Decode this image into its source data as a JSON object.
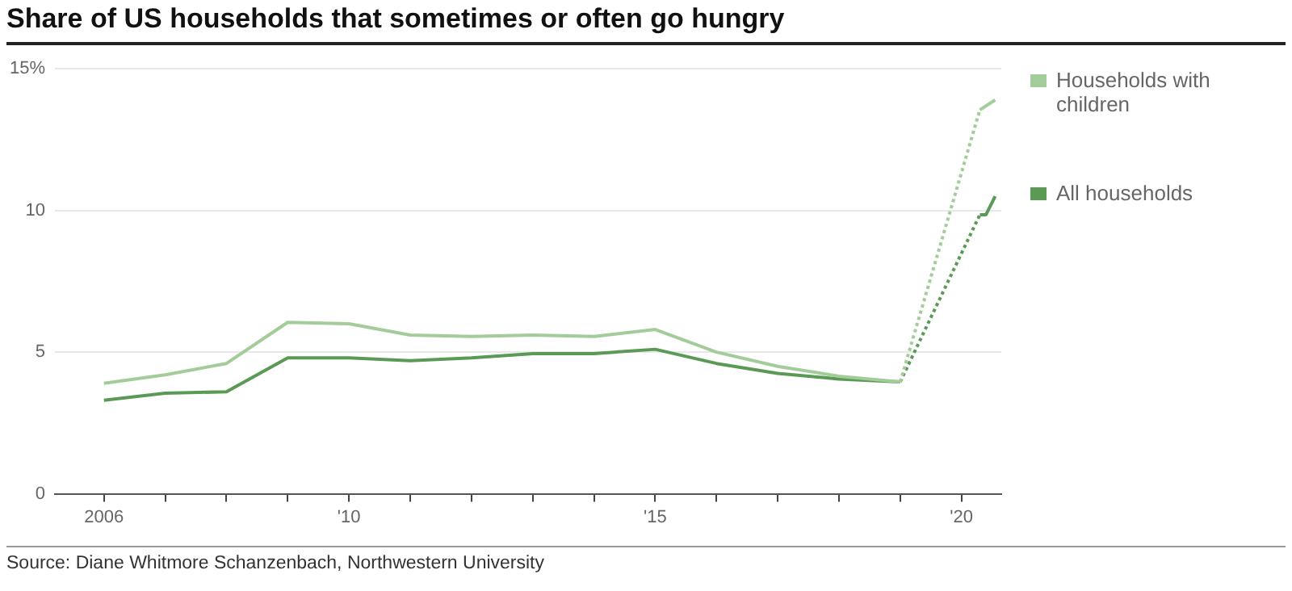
{
  "chart_data": {
    "type": "line",
    "title": "Share of US households that sometimes or often go hungry",
    "annotations": [
      "Source: Diane Whitmore Schanzenbach, Northwestern University"
    ],
    "series": [
      {
        "name": "Households with children",
        "color": "#a3cc9a",
        "line_style": "solid",
        "x": [
          2006,
          2007,
          2008,
          2009,
          2010,
          2011,
          2012,
          2013,
          2014,
          2015,
          2016,
          2017,
          2018,
          2019
        ],
        "values": [
          3.9,
          4.2,
          4.6,
          6.05,
          6.0,
          5.6,
          5.55,
          5.6,
          5.55,
          5.8,
          5.0,
          4.5,
          4.15,
          3.95
        ]
      },
      {
        "color": "#a3cc9a",
        "line_style": "dotted",
        "x": [
          2019,
          2020.3
        ],
        "values": [
          3.95,
          13.55
        ]
      },
      {
        "color": "#a3cc9a",
        "line_style": "solid",
        "x": [
          2020.3,
          2020.55
        ],
        "values": [
          13.55,
          13.9
        ]
      },
      {
        "name": "All households",
        "color": "#5a9a55",
        "line_style": "solid",
        "x": [
          2006,
          2007,
          2008,
          2009,
          2010,
          2011,
          2012,
          2013,
          2014,
          2015,
          2016,
          2017,
          2018,
          2019
        ],
        "values": [
          3.3,
          3.55,
          3.6,
          4.8,
          4.8,
          4.7,
          4.8,
          4.95,
          4.95,
          5.1,
          4.6,
          4.25,
          4.05,
          3.95
        ]
      },
      {
        "color": "#5a9a55",
        "line_style": "dotted",
        "x": [
          2019,
          2020.3
        ],
        "values": [
          3.95,
          9.85
        ]
      },
      {
        "color": "#5a9a55",
        "line_style": "solid",
        "x": [
          2020.3,
          2020.4,
          2020.55
        ],
        "values": [
          9.85,
          9.85,
          10.5
        ]
      }
    ],
    "xlim": [
      2005.2,
      2020.65
    ],
    "xticks": [
      {
        "value": 2006,
        "label": "2006"
      },
      {
        "value": 2007,
        "label": null
      },
      {
        "value": 2008,
        "label": null
      },
      {
        "value": 2009,
        "label": null
      },
      {
        "value": 2010,
        "label": "'10"
      },
      {
        "value": 2011,
        "label": null
      },
      {
        "value": 2012,
        "label": null
      },
      {
        "value": 2013,
        "label": null
      },
      {
        "value": 2014,
        "label": null
      },
      {
        "value": 2015,
        "label": "'15"
      },
      {
        "value": 2016,
        "label": null
      },
      {
        "value": 2017,
        "label": null
      },
      {
        "value": 2018,
        "label": null
      },
      {
        "value": 2019,
        "label": null
      },
      {
        "value": 2020,
        "label": "'20"
      }
    ],
    "ylim": [
      0,
      15
    ],
    "yticks": [
      0,
      5,
      10,
      {
        "value": 15,
        "label": "15%"
      }
    ],
    "grid": "y",
    "legend": "right",
    "marker": "none"
  }
}
